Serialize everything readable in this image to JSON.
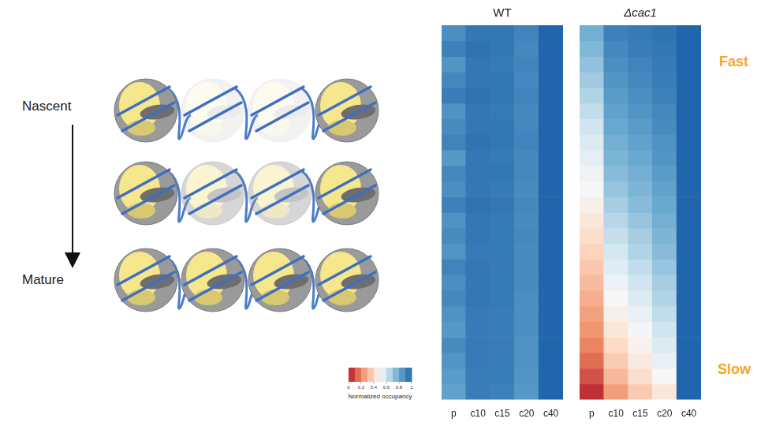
{
  "chart_data": [
    {
      "type": "heatmap",
      "title": "WT",
      "categories": [
        "p",
        "c10",
        "c15",
        "c20",
        "c40"
      ],
      "tick_labels": "x",
      "cells": [
        [
          0.88,
          0.95,
          0.95,
          0.91,
          1
        ],
        [
          0.92,
          0.96,
          0.95,
          0.9,
          1
        ],
        [
          0.86,
          0.95,
          0.94,
          0.91,
          1
        ],
        [
          0.9,
          0.95,
          0.95,
          0.9,
          1
        ],
        [
          0.93,
          0.96,
          0.95,
          0.91,
          1
        ],
        [
          0.87,
          0.95,
          0.94,
          0.9,
          1
        ],
        [
          0.89,
          0.95,
          0.95,
          0.9,
          1
        ],
        [
          0.91,
          0.96,
          0.95,
          0.91,
          1
        ],
        [
          0.85,
          0.95,
          0.94,
          0.9,
          1
        ],
        [
          0.9,
          0.95,
          0.95,
          0.9,
          1
        ],
        [
          0.88,
          0.95,
          0.94,
          0.89,
          1
        ],
        [
          0.92,
          0.96,
          0.95,
          0.9,
          1
        ],
        [
          0.87,
          0.95,
          0.94,
          0.89,
          1
        ],
        [
          0.89,
          0.95,
          0.94,
          0.9,
          1
        ],
        [
          0.86,
          0.94,
          0.94,
          0.89,
          1
        ],
        [
          0.91,
          0.95,
          0.94,
          0.89,
          1
        ],
        [
          0.88,
          0.95,
          0.94,
          0.89,
          1
        ],
        [
          0.9,
          0.95,
          0.94,
          0.88,
          1
        ],
        [
          0.87,
          0.94,
          0.93,
          0.88,
          1
        ],
        [
          0.85,
          0.94,
          0.93,
          0.88,
          1
        ],
        [
          0.89,
          0.94,
          0.93,
          0.87,
          1
        ],
        [
          0.86,
          0.94,
          0.93,
          0.87,
          1
        ],
        [
          0.84,
          0.93,
          0.93,
          0.86,
          1
        ],
        [
          0.82,
          0.93,
          0.92,
          0.85,
          1
        ]
      ]
    },
    {
      "type": "heatmap",
      "title": "Δcac1",
      "categories": [
        "p",
        "c10",
        "c15",
        "c20",
        "c40"
      ],
      "tick_labels": "x",
      "cells": [
        [
          0.78,
          0.92,
          0.94,
          0.96,
          1
        ],
        [
          0.75,
          0.9,
          0.93,
          0.95,
          1
        ],
        [
          0.72,
          0.88,
          0.91,
          0.94,
          1
        ],
        [
          0.69,
          0.86,
          0.9,
          0.93,
          1
        ],
        [
          0.66,
          0.84,
          0.88,
          0.92,
          1
        ],
        [
          0.63,
          0.82,
          0.86,
          0.9,
          1
        ],
        [
          0.6,
          0.8,
          0.84,
          0.89,
          1
        ],
        [
          0.57,
          0.78,
          0.82,
          0.87,
          1
        ],
        [
          0.55,
          0.76,
          0.8,
          0.86,
          1
        ],
        [
          0.52,
          0.74,
          0.78,
          0.84,
          1
        ],
        [
          0.5,
          0.71,
          0.76,
          0.82,
          1
        ],
        [
          0.47,
          0.68,
          0.74,
          0.8,
          1
        ],
        [
          0.44,
          0.65,
          0.71,
          0.78,
          1
        ],
        [
          0.41,
          0.62,
          0.68,
          0.76,
          1
        ],
        [
          0.38,
          0.59,
          0.66,
          0.74,
          1
        ],
        [
          0.35,
          0.56,
          0.63,
          0.71,
          1
        ],
        [
          0.32,
          0.53,
          0.6,
          0.68,
          1
        ],
        [
          0.29,
          0.5,
          0.57,
          0.66,
          1
        ],
        [
          0.26,
          0.47,
          0.54,
          0.63,
          1
        ],
        [
          0.23,
          0.44,
          0.51,
          0.6,
          1
        ],
        [
          0.19,
          0.4,
          0.48,
          0.57,
          1
        ],
        [
          0.15,
          0.36,
          0.45,
          0.54,
          1
        ],
        [
          0.1,
          0.31,
          0.41,
          0.5,
          1
        ],
        [
          0.04,
          0.25,
          0.36,
          0.44,
          1
        ]
      ]
    }
  ],
  "colorbar": {
    "label": "Normalized occupancy",
    "range": [
      0,
      1
    ],
    "ticks": [
      0,
      0.2,
      0.4,
      0.6,
      0.8,
      1
    ]
  },
  "diagram": {
    "start": "Nascent",
    "end": "Mature"
  },
  "annotations": {
    "top": "Fast",
    "bottom": "Slow"
  }
}
